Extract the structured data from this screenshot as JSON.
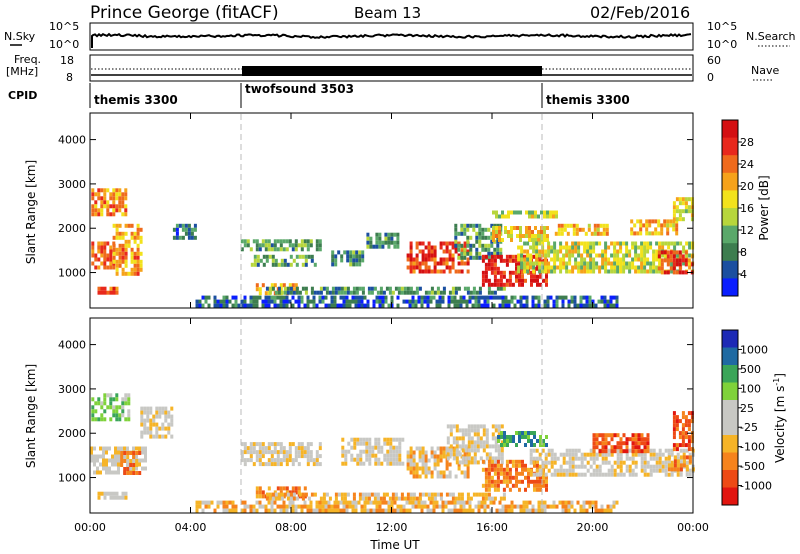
{
  "header": {
    "station": "Prince George (fitACF)",
    "beam": "Beam 13",
    "date": "02/Feb/2016"
  },
  "top_panels": {
    "nsky": {
      "label": "N.Sky",
      "right_label": "N.Search",
      "ticks": [
        "10^5",
        "10^0"
      ],
      "right_ticks": [
        "10^5",
        "10^0"
      ]
    },
    "freq": {
      "label_line1": "Freq.",
      "label_line2": "[MHz]",
      "right_label": "Nave",
      "ticks": [
        "18",
        "8"
      ],
      "right_ticks": [
        "60",
        "0"
      ]
    },
    "cpid": {
      "label": "CPID",
      "segments": [
        {
          "name": "themis 3300",
          "start_hour": 0
        },
        {
          "name": "twofsound 3503",
          "start_hour": 6
        },
        {
          "name": "themis 3300",
          "start_hour": 18
        }
      ]
    }
  },
  "colors": {
    "power": [
      "#0a1eff",
      "#1b4fa0",
      "#3d7d4f",
      "#5aa86a",
      "#b7d63c",
      "#f2e21c",
      "#f6a21a",
      "#ef6a1c",
      "#e8281c",
      "#d40f12"
    ],
    "velocity": [
      "#e2150f",
      "#ee4a15",
      "#f6831c",
      "#f6b427",
      "#c8c8c4",
      "#c8c8c4",
      "#7fd23a",
      "#3aa558",
      "#1f6aa2",
      "#1d2ab5"
    ],
    "grey": "#c8c8c4"
  },
  "chart_data": [
    {
      "type": "heatmap",
      "name": "power",
      "ylabel": "Slant Range [km]",
      "xlim_hours": [
        0,
        24
      ],
      "ylim": [
        200,
        4600
      ],
      "yticks": [
        "4000",
        "3000",
        "2000",
        "1000"
      ],
      "colorbar": {
        "label": "Power [dB]",
        "ticks": [
          "28",
          "24",
          "20",
          "16",
          "12",
          "8",
          "4"
        ],
        "range": [
          0,
          32
        ]
      },
      "blobs": [
        {
          "t0": 0.05,
          "t1": 1.4,
          "r0": 2300,
          "r1": 2900,
          "v": 22
        },
        {
          "t0": 0.05,
          "t1": 1.0,
          "r0": 1150,
          "r1": 1700,
          "v": 24
        },
        {
          "t0": 0.9,
          "t1": 2.0,
          "r0": 1000,
          "r1": 2100,
          "v": 21
        },
        {
          "t0": 0.3,
          "t1": 1.1,
          "r0": 560,
          "r1": 680,
          "v": 26
        },
        {
          "t0": 3.3,
          "t1": 4.2,
          "r0": 1800,
          "r1": 2100,
          "v": 8
        },
        {
          "t0": 6.0,
          "t1": 9.2,
          "r0": 1550,
          "r1": 1750,
          "v": 10
        },
        {
          "t0": 6.4,
          "t1": 9.0,
          "r0": 1150,
          "r1": 1400,
          "v": 11
        },
        {
          "t0": 6.6,
          "t1": 8.2,
          "r0": 560,
          "r1": 760,
          "v": 20
        },
        {
          "t0": 9.6,
          "t1": 10.8,
          "r0": 1200,
          "r1": 1500,
          "v": 9
        },
        {
          "t0": 11.0,
          "t1": 12.2,
          "r0": 1600,
          "r1": 1900,
          "v": 9
        },
        {
          "t0": 12.6,
          "t1": 15.0,
          "r0": 1000,
          "r1": 1700,
          "v": 27
        },
        {
          "t0": 7.0,
          "t1": 16.5,
          "r0": 520,
          "r1": 680,
          "v": 9
        },
        {
          "t0": 14.5,
          "t1": 16.4,
          "r0": 1350,
          "r1": 2100,
          "v": 10
        },
        {
          "t0": 15.6,
          "t1": 18.2,
          "r0": 700,
          "r1": 1400,
          "v": 29
        },
        {
          "t0": 16.0,
          "t1": 18.2,
          "r0": 1700,
          "r1": 2050,
          "v": 18
        },
        {
          "t0": 16.0,
          "t1": 18.6,
          "r0": 2250,
          "r1": 2400,
          "v": 15
        },
        {
          "t0": 17.0,
          "t1": 24.0,
          "r0": 1000,
          "r1": 1700,
          "v": 16
        },
        {
          "t0": 18.5,
          "t1": 20.6,
          "r0": 1850,
          "r1": 2100,
          "v": 20
        },
        {
          "t0": 21.5,
          "t1": 23.3,
          "r0": 1900,
          "r1": 2200,
          "v": 20
        },
        {
          "t0": 22.6,
          "t1": 24.0,
          "r0": 1000,
          "r1": 1500,
          "v": 27
        },
        {
          "t0": 23.2,
          "t1": 24.0,
          "r0": 2200,
          "r1": 2700,
          "v": 17
        },
        {
          "t0": 4.2,
          "t1": 21.0,
          "r0": 230,
          "r1": 480,
          "v": 6
        }
      ]
    },
    {
      "type": "heatmap",
      "name": "velocity",
      "ylabel": "Slant Range [km]",
      "xlabel": "Time UT",
      "xlim_hours": [
        0,
        24
      ],
      "ylim": [
        200,
        4600
      ],
      "yticks": [
        "4000",
        "3000",
        "2000",
        "1000"
      ],
      "xticks": [
        "00:00",
        "04:00",
        "08:00",
        "12:00",
        "16:00",
        "20:00",
        "00:00"
      ],
      "colorbar": {
        "label": "Velocity [m s",
        "label_sup": "-1",
        "label_end": "]",
        "ticks": [
          "1000",
          "500",
          "100",
          "25",
          "-25",
          "-100",
          "-500",
          "-1000"
        ]
      },
      "blobs": [
        {
          "t0": 0.05,
          "t1": 1.6,
          "r0": 2300,
          "r1": 2900,
          "v": 6
        },
        {
          "t0": 0.0,
          "t1": 2.2,
          "r0": 1150,
          "r1": 1700,
          "v": 4
        },
        {
          "t0": 1.2,
          "t1": 2.0,
          "r0": 1100,
          "r1": 1600,
          "v": 2
        },
        {
          "t0": 2.0,
          "t1": 3.2,
          "r0": 1900,
          "r1": 2600,
          "v": 4
        },
        {
          "t0": 0.3,
          "t1": 1.4,
          "r0": 560,
          "r1": 680,
          "v": 4
        },
        {
          "t0": 6.0,
          "t1": 9.2,
          "r0": 1300,
          "r1": 1800,
          "v": 4
        },
        {
          "t0": 6.6,
          "t1": 8.6,
          "r0": 560,
          "r1": 800,
          "v": 2
        },
        {
          "t0": 7.0,
          "t1": 16.5,
          "r0": 520,
          "r1": 660,
          "v": 3
        },
        {
          "t0": 10.0,
          "t1": 12.4,
          "r0": 1300,
          "r1": 1900,
          "v": 4
        },
        {
          "t0": 12.6,
          "t1": 15.0,
          "r0": 1000,
          "r1": 1700,
          "v": 3
        },
        {
          "t0": 14.2,
          "t1": 16.4,
          "r0": 1300,
          "r1": 2200,
          "v": 4
        },
        {
          "t0": 15.6,
          "t1": 18.2,
          "r0": 700,
          "r1": 1400,
          "v": 2
        },
        {
          "t0": 16.2,
          "t1": 18.2,
          "r0": 1700,
          "r1": 2050,
          "v": 7
        },
        {
          "t0": 17.5,
          "t1": 24.0,
          "r0": 1050,
          "r1": 1650,
          "v": 4
        },
        {
          "t0": 20.0,
          "t1": 22.2,
          "r0": 1600,
          "r1": 2000,
          "v": 1
        },
        {
          "t0": 23.2,
          "t1": 24.0,
          "r0": 1600,
          "r1": 2500,
          "v": 1
        },
        {
          "t0": 23.0,
          "t1": 24.0,
          "r0": 1150,
          "r1": 1500,
          "v": 2
        },
        {
          "t0": 4.2,
          "t1": 21.0,
          "r0": 230,
          "r1": 480,
          "v": 3
        }
      ]
    }
  ]
}
